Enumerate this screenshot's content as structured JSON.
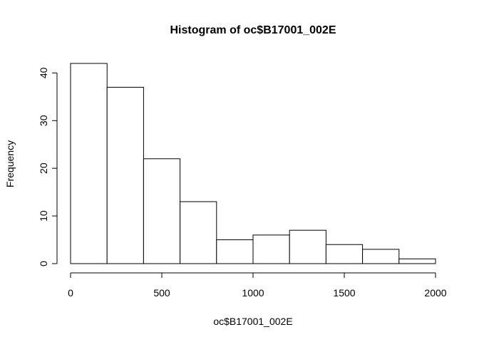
{
  "chart_data": {
    "type": "bar",
    "title": "Histogram of oc$B17001_002E",
    "xlabel": "oc$B17001_002E",
    "ylabel": "Frequency",
    "bin_edges": [
      0,
      200,
      400,
      600,
      800,
      1000,
      1200,
      1400,
      1600,
      1800,
      2000
    ],
    "values": [
      42,
      37,
      22,
      13,
      5,
      6,
      7,
      4,
      3,
      1
    ],
    "xlim": [
      0,
      2000
    ],
    "ylim": [
      0,
      42
    ],
    "x_ticks": [
      0,
      500,
      1000,
      1500,
      2000
    ],
    "y_ticks": [
      0,
      10,
      20,
      30,
      40
    ],
    "bar_fill": "#ffffff",
    "bar_stroke": "#000000",
    "grid": false
  }
}
